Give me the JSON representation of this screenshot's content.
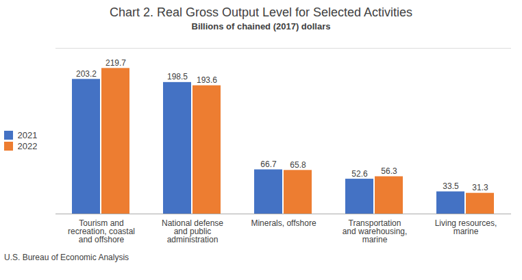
{
  "chart_data": {
    "type": "bar",
    "title": "Chart 2. Real Gross Output Level for Selected Activities",
    "subtitle": "Billions of chained (2017) dollars",
    "footnote": "U.S. Bureau of Economic Analysis",
    "categories": [
      "Tourism and\nrecreation, coastal\nand offshore",
      "National defense\nand public\nadministration",
      "Minerals, offshore",
      "Transportation\nand warehousing,\nmarine",
      "Living resources,\nmarine"
    ],
    "series": [
      {
        "name": "2021",
        "color": "#4472c4",
        "values": [
          203.2,
          198.5,
          66.7,
          52.6,
          33.5
        ]
      },
      {
        "name": "2022",
        "color": "#ed7d31",
        "values": [
          219.7,
          193.6,
          65.8,
          56.3,
          31.3
        ]
      }
    ],
    "ylim": [
      0,
      250
    ],
    "grid": false,
    "legend": "left",
    "data_labels": true,
    "tick_labels": "x"
  }
}
